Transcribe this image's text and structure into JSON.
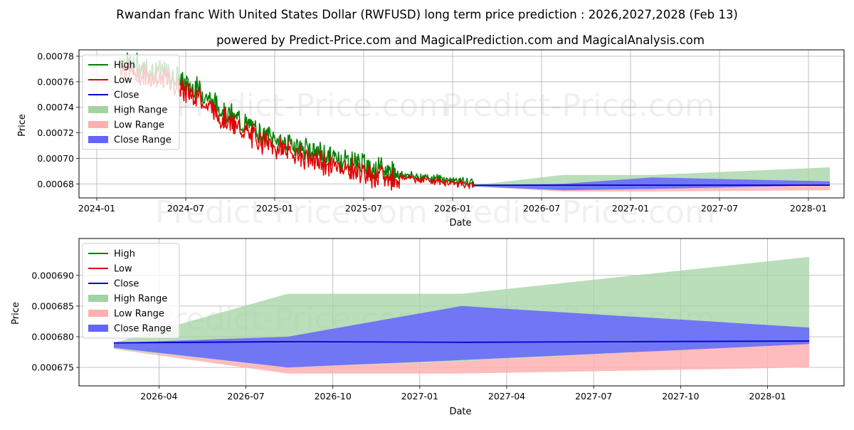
{
  "title": "Rwandan franc With United States Dollar (RWFUSD) long term price prediction : 2026,2027,2028 (Feb 13)",
  "subtitle": "powered by Predict-Price.com and MagicalPrediction.com and MagicalAnalysis.com",
  "watermark": "Predict-Price.com",
  "colors": {
    "high": "#008000",
    "low": "#e00000",
    "close": "#0000cc",
    "high_range": "#a3d3a3",
    "low_range": "#ffb0b0",
    "close_range": "#6464ff"
  },
  "legend": [
    "High",
    "Low",
    "Close",
    "High Range",
    "Low Range",
    "Close Range"
  ],
  "chart_data": [
    {
      "type": "line",
      "name": "full-history",
      "xlabel": "Date",
      "ylabel": "Price",
      "x_ticks": [
        "2024-01",
        "2024-07",
        "2025-01",
        "2025-07",
        "2026-01",
        "2026-07",
        "2027-01",
        "2027-07",
        "2028-01"
      ],
      "x_tick_years": [
        2024.0,
        2024.5,
        2025.0,
        2025.5,
        2026.0,
        2026.5,
        2027.0,
        2027.5,
        2028.0
      ],
      "y_ticks": [
        "0.00068",
        "0.00070",
        "0.00072",
        "0.00074",
        "0.00076",
        "0.00078"
      ],
      "y_tick_values": [
        0.00068,
        0.0007,
        0.00072,
        0.00074,
        0.00076,
        0.00078
      ],
      "xlim": [
        2023.9,
        2028.2
      ],
      "ylim": [
        0.000669,
        0.000785
      ],
      "history": {
        "x_start": 2024.13,
        "x_end": 2026.12,
        "anchors": [
          [
            2024.13,
            0.000775
          ],
          [
            2024.25,
            0.000768
          ],
          [
            2024.4,
            0.000764
          ],
          [
            2024.5,
            0.000755
          ],
          [
            2024.58,
            0.00075
          ],
          [
            2024.7,
            0.000735
          ],
          [
            2024.85,
            0.000722
          ],
          [
            2025.0,
            0.000712
          ],
          [
            2025.15,
            0.000705
          ],
          [
            2025.3,
            0.000698
          ],
          [
            2025.45,
            0.000694
          ],
          [
            2025.6,
            0.000688
          ],
          [
            2025.8,
            0.000685
          ],
          [
            2026.0,
            0.000682
          ],
          [
            2026.12,
            0.00068
          ]
        ]
      },
      "forecast": {
        "x": [
          2026.12,
          2026.62,
          2027.12,
          2028.12
        ],
        "high_upper": [
          0.000679,
          0.000687,
          0.000687,
          0.000693
        ],
        "low_lower": [
          0.000678,
          0.000674,
          0.000674,
          0.000675
        ],
        "close_upper": [
          0.000679,
          0.00068,
          0.000685,
          0.000682
        ],
        "close_lower": [
          0.000678,
          0.000675,
          0.000676,
          0.000679
        ],
        "close": [
          0.000679,
          0.000679,
          0.000679,
          0.000679
        ]
      }
    },
    {
      "type": "area",
      "name": "forecast-zoom",
      "xlabel": "Date",
      "ylabel": "Price",
      "x_ticks": [
        "2026-04",
        "2026-07",
        "2026-10",
        "2027-01",
        "2027-04",
        "2027-07",
        "2027-10",
        "2028-01"
      ],
      "x_tick_years": [
        2026.25,
        2026.5,
        2026.75,
        2027.0,
        2027.25,
        2027.5,
        2027.75,
        2028.0
      ],
      "y_ticks": [
        "0.000675",
        "0.000680",
        "0.000685",
        "0.000690"
      ],
      "y_tick_values": [
        0.000675,
        0.00068,
        0.000685,
        0.00069
      ],
      "xlim": [
        2026.02,
        2028.22
      ],
      "ylim": [
        0.000672,
        0.000696
      ],
      "x": [
        2026.12,
        2026.62,
        2027.12,
        2028.12
      ],
      "high_range": {
        "upper": [
          0.000679,
          0.000687,
          0.000687,
          0.000693
        ],
        "lower": [
          0.000678,
          0.000675,
          0.000676,
          0.000679
        ]
      },
      "low_range": {
        "upper": [
          0.000678,
          0.000675,
          0.000676,
          0.000679
        ],
        "lower": [
          0.000678,
          0.000674,
          0.000674,
          0.000675
        ]
      },
      "close_range": {
        "upper": [
          0.000679,
          0.00068,
          0.000685,
          0.0006815
        ],
        "lower": [
          0.0006782,
          0.000675,
          0.0006762,
          0.0006788
        ]
      },
      "close": [
        0.000679,
        0.0006792,
        0.0006791,
        0.0006793
      ]
    }
  ]
}
